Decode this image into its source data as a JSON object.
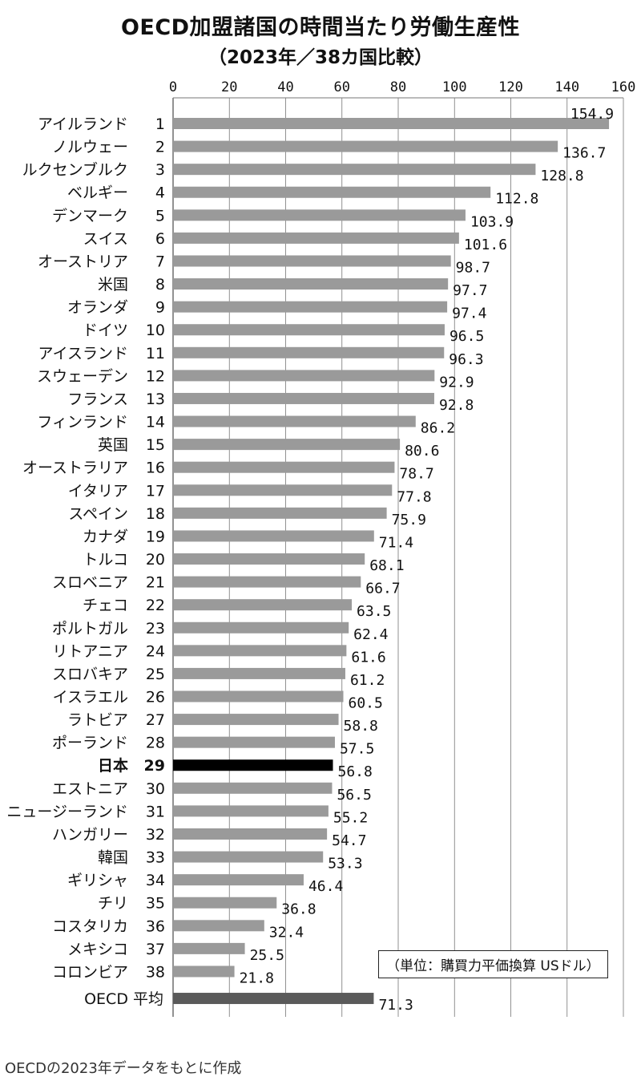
{
  "title": "OECD加盟諸国の時間当たり労働生産性",
  "subtitle": "（2023年／38カ国比較）",
  "unit_note": "（単位：購買力平価換算 USドル）",
  "source": "OECDの2023年データをもとに作成",
  "colors": {
    "bar": "#9a9a9a",
    "highlight": "#000000",
    "average": "#5a5a5a",
    "grid": "#777777"
  },
  "chart_data": {
    "type": "bar",
    "orientation": "horizontal",
    "xlim": [
      0,
      160
    ],
    "xticks": [
      "0",
      "20",
      "40",
      "60",
      "80",
      "100",
      "120",
      "140",
      "160"
    ],
    "grid": true,
    "highlight": "日本",
    "categories": [
      "アイルランド",
      "ノルウェー",
      "ルクセンブルク",
      "ベルギー",
      "デンマーク",
      "スイス",
      "オーストリア",
      "米国",
      "オランダ",
      "ドイツ",
      "アイスランド",
      "スウェーデン",
      "フランス",
      "フィンランド",
      "英国",
      "オーストラリア",
      "イタリア",
      "スペイン",
      "カナダ",
      "トルコ",
      "スロベニア",
      "チェコ",
      "ポルトガル",
      "リトアニア",
      "スロバキア",
      "イスラエル",
      "ラトビア",
      "ポーランド",
      "日本",
      "エストニア",
      "ニュージーランド",
      "ハンガリー",
      "韓国",
      "ギリシャ",
      "チリ",
      "コスタリカ",
      "メキシコ",
      "コロンビア",
      "OECD 平均"
    ],
    "ranks": [
      "1",
      "2",
      "3",
      "4",
      "5",
      "6",
      "7",
      "8",
      "9",
      "10",
      "11",
      "12",
      "13",
      "14",
      "15",
      "16",
      "17",
      "18",
      "19",
      "20",
      "21",
      "22",
      "23",
      "24",
      "25",
      "26",
      "27",
      "28",
      "29",
      "30",
      "31",
      "32",
      "33",
      "34",
      "35",
      "36",
      "37",
      "38",
      ""
    ],
    "values": [
      154.9,
      136.7,
      128.8,
      112.8,
      103.9,
      101.6,
      98.7,
      97.7,
      97.4,
      96.5,
      96.3,
      92.9,
      92.8,
      86.2,
      80.6,
      78.7,
      77.8,
      75.9,
      71.4,
      68.1,
      66.7,
      63.5,
      62.4,
      61.6,
      61.2,
      60.5,
      58.8,
      57.5,
      56.8,
      56.5,
      55.2,
      54.7,
      53.3,
      46.4,
      36.8,
      32.4,
      25.5,
      21.8,
      71.3
    ],
    "value_labels": [
      "154.9",
      "136.7",
      "128.8",
      "112.8",
      "103.9",
      "101.6",
      "98.7",
      "97.7",
      "97.4",
      "96.5",
      "96.3",
      "92.9",
      "92.8",
      "86.2",
      "80.6",
      "78.7",
      "77.8",
      "75.9",
      "71.4",
      "68.1",
      "66.7",
      "63.5",
      "62.4",
      "61.6",
      "61.2",
      "60.5",
      "58.8",
      "57.5",
      "56.8",
      "56.5",
      "55.2",
      "54.7",
      "53.3",
      "46.4",
      "36.8",
      "32.4",
      "25.5",
      "21.8",
      "71.3"
    ]
  }
}
